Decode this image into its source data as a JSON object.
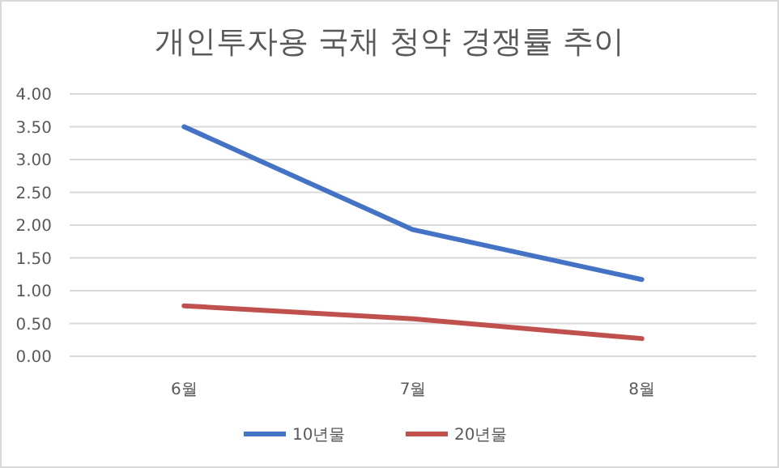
{
  "chart_data": {
    "type": "line",
    "title": "개인투자용 국채 청약 경쟁률 추이",
    "categories": [
      "6월",
      "7월",
      "8월"
    ],
    "series": [
      {
        "name": "10년물",
        "color": "#4472c4",
        "values": [
          3.5,
          1.93,
          1.17
        ]
      },
      {
        "name": "20년물",
        "color": "#c0504d",
        "values": [
          0.77,
          0.57,
          0.27
        ]
      }
    ],
    "ylim": [
      0,
      4
    ],
    "yticks": [
      {
        "value": 0,
        "label": "0.00"
      },
      {
        "value": 0.5,
        "label": "0.50"
      },
      {
        "value": 1,
        "label": "1.00"
      },
      {
        "value": 1.5,
        "label": "1.50"
      },
      {
        "value": 2,
        "label": "2.00"
      },
      {
        "value": 2.5,
        "label": "2.50"
      },
      {
        "value": 3,
        "label": "3.00"
      },
      {
        "value": 3.5,
        "label": "3.50"
      },
      {
        "value": 4,
        "label": "4.00"
      }
    ],
    "grid": "y",
    "legend": "bottom",
    "marker": "none",
    "line_style": "solid"
  }
}
